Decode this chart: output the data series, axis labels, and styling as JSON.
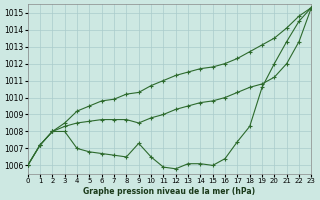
{
  "title": "Graphe pression niveau de la mer (hPa)",
  "bg_color": "#cde8e2",
  "grid_color": "#aacccc",
  "line_color": "#2d6a2d",
  "xlim": [
    0,
    23
  ],
  "ylim": [
    1005.5,
    1015.5
  ],
  "xticks": [
    0,
    1,
    2,
    3,
    4,
    5,
    6,
    7,
    8,
    9,
    10,
    11,
    12,
    13,
    14,
    15,
    16,
    17,
    18,
    19,
    20,
    21,
    22,
    23
  ],
  "yticks": [
    1006,
    1007,
    1008,
    1009,
    1010,
    1011,
    1012,
    1013,
    1014,
    1015
  ],
  "series": [
    {
      "x": [
        0,
        1,
        2,
        3,
        4,
        5,
        6,
        7,
        8,
        9,
        10,
        11,
        12,
        13,
        14,
        15,
        16,
        17,
        18,
        19,
        20,
        21,
        22,
        23
      ],
      "y": [
        1006.0,
        1007.2,
        1008.0,
        1008.5,
        1009.2,
        1009.5,
        1009.8,
        1009.9,
        1010.2,
        1010.3,
        1010.7,
        1011.0,
        1011.3,
        1011.5,
        1011.7,
        1011.8,
        1012.0,
        1012.3,
        1012.7,
        1013.1,
        1013.5,
        1014.1,
        1014.8,
        1015.3
      ]
    },
    {
      "x": [
        0,
        1,
        2,
        3,
        4,
        5,
        6,
        7,
        8,
        9,
        10,
        11,
        12,
        13,
        14,
        15,
        16,
        17,
        18,
        19,
        20,
        21,
        22,
        23
      ],
      "y": [
        1006.0,
        1007.2,
        1008.0,
        1008.3,
        1008.5,
        1008.6,
        1008.7,
        1008.7,
        1008.7,
        1008.5,
        1008.8,
        1009.0,
        1009.3,
        1009.5,
        1009.7,
        1009.8,
        1010.0,
        1010.3,
        1010.6,
        1010.8,
        1011.2,
        1012.0,
        1013.3,
        1015.3
      ]
    },
    {
      "x": [
        0,
        1,
        2,
        3,
        4,
        5,
        6,
        7,
        8,
        9,
        10,
        11,
        12,
        13,
        14,
        15,
        16,
        17,
        18,
        19,
        20,
        21,
        22,
        23
      ],
      "y": [
        1006.0,
        1007.2,
        1008.0,
        1008.0,
        1007.0,
        1006.8,
        1006.7,
        1006.6,
        1006.5,
        1007.3,
        1006.5,
        1005.9,
        1005.8,
        1006.1,
        1006.1,
        1006.0,
        1006.4,
        1007.4,
        1008.3,
        1010.6,
        1012.0,
        1013.3,
        1014.5,
        1015.3
      ]
    }
  ]
}
